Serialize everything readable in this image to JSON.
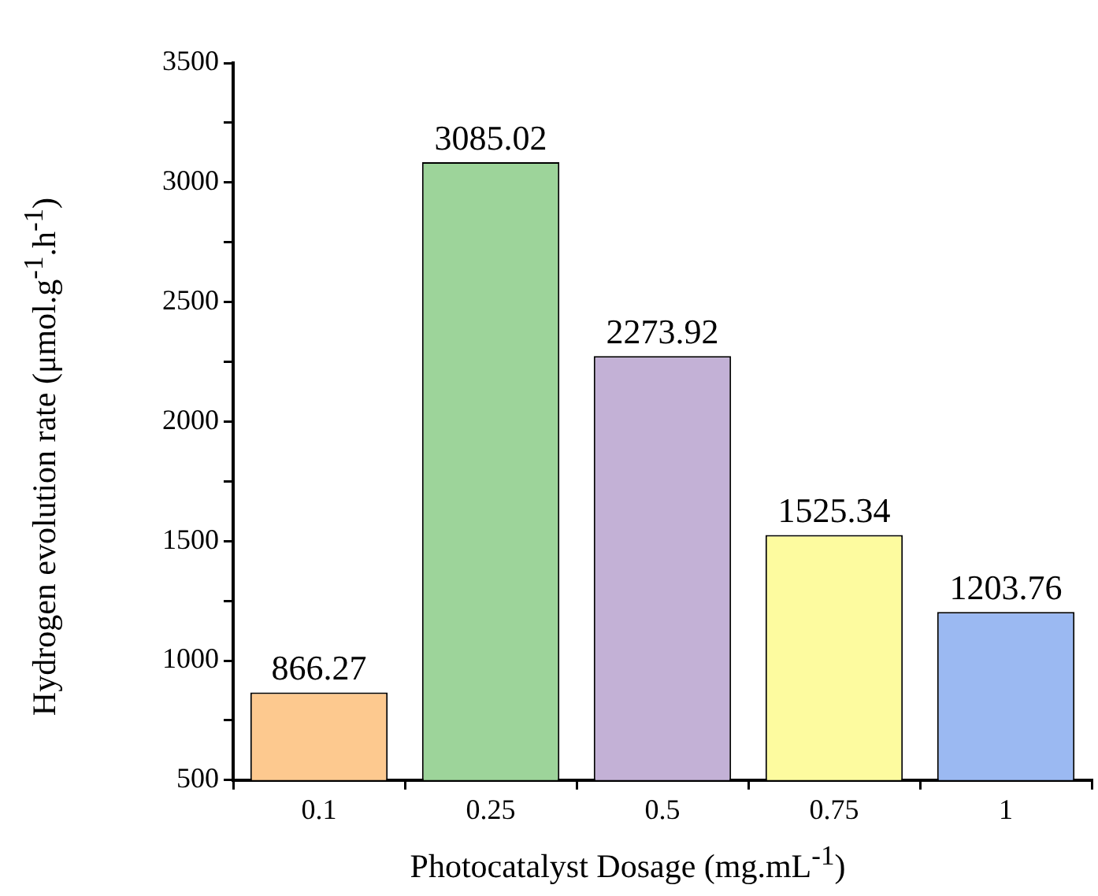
{
  "chart_data": {
    "type": "bar",
    "xlabel": "Photocatalyst Dosage (mg.mL$^{-1}$)",
    "ylabel": "Hydrogen evolution rate (μmol.g$^{-1}$.h$^{-1}$)",
    "categories": [
      "0.1",
      "0.25",
      "0.5",
      "0.75",
      "1"
    ],
    "values": [
      866.27,
      3085.02,
      2273.92,
      1525.34,
      1203.76
    ],
    "colors": [
      "#fdc98f",
      "#9dd49a",
      "#c3b1d6",
      "#fdfb9f",
      "#9bb9f2"
    ],
    "ylim": [
      500,
      3500
    ],
    "yticks": [
      500,
      {
        "value": 750,
        "label": null
      },
      1000,
      {
        "value": 1250,
        "label": null
      },
      1500,
      {
        "value": 1750,
        "label": null
      },
      2000,
      {
        "value": 2250,
        "label": null
      },
      2500,
      {
        "value": 2750,
        "label": null
      },
      3000,
      {
        "value": 3250,
        "label": null
      },
      3500
    ],
    "data_labels": true,
    "grid": false,
    "legend": false
  }
}
